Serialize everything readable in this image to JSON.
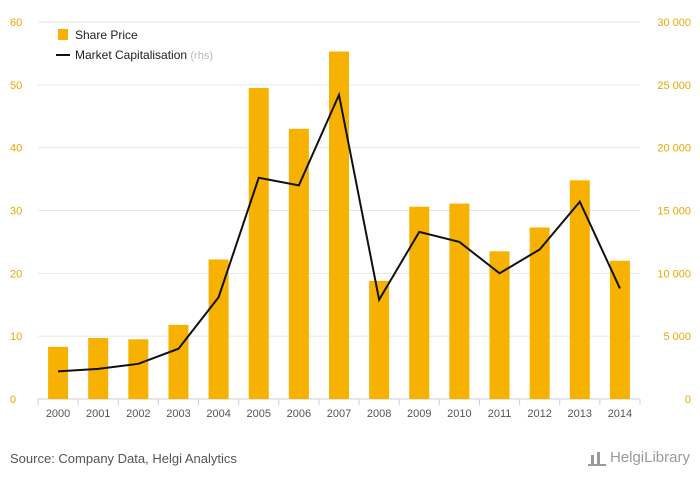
{
  "chart_data": {
    "type": "bar",
    "categories": [
      "2000",
      "2001",
      "2002",
      "2003",
      "2004",
      "2005",
      "2006",
      "2007",
      "2008",
      "2009",
      "2010",
      "2011",
      "2012",
      "2013",
      "2014"
    ],
    "series": [
      {
        "name": "Share Price",
        "type": "bar",
        "axis": "left",
        "values": [
          8.3,
          9.7,
          9.5,
          11.8,
          22.2,
          49.5,
          43.0,
          55.3,
          18.8,
          30.6,
          31.1,
          23.5,
          27.3,
          34.8,
          22.0
        ]
      },
      {
        "name": "Market Capitalisation",
        "name_note": "(rhs)",
        "type": "line",
        "axis": "right",
        "values": [
          2200,
          2400,
          2800,
          4000,
          8100,
          17600,
          17000,
          24200,
          7900,
          13300,
          12500,
          10000,
          11900,
          15700,
          8800
        ]
      }
    ],
    "ylim_left": [
      0,
      60
    ],
    "yticks_left": [
      "0",
      "10",
      "20",
      "30",
      "40",
      "50",
      "60"
    ],
    "ylim_right": [
      0,
      30000
    ],
    "yticks_right": [
      "0",
      "5 000",
      "10 000",
      "15 000",
      "20 000",
      "25 000",
      "30 000"
    ],
    "grid": "horizontal",
    "legend": "top-left",
    "colors": {
      "bar": "#f7b100",
      "line": "#111111",
      "tick": "#e8a800",
      "grid": "#e6e6e6"
    }
  },
  "footer": {
    "source": "Source: Company Data, Helgi Analytics",
    "logo_text": "HelgiLibrary"
  }
}
